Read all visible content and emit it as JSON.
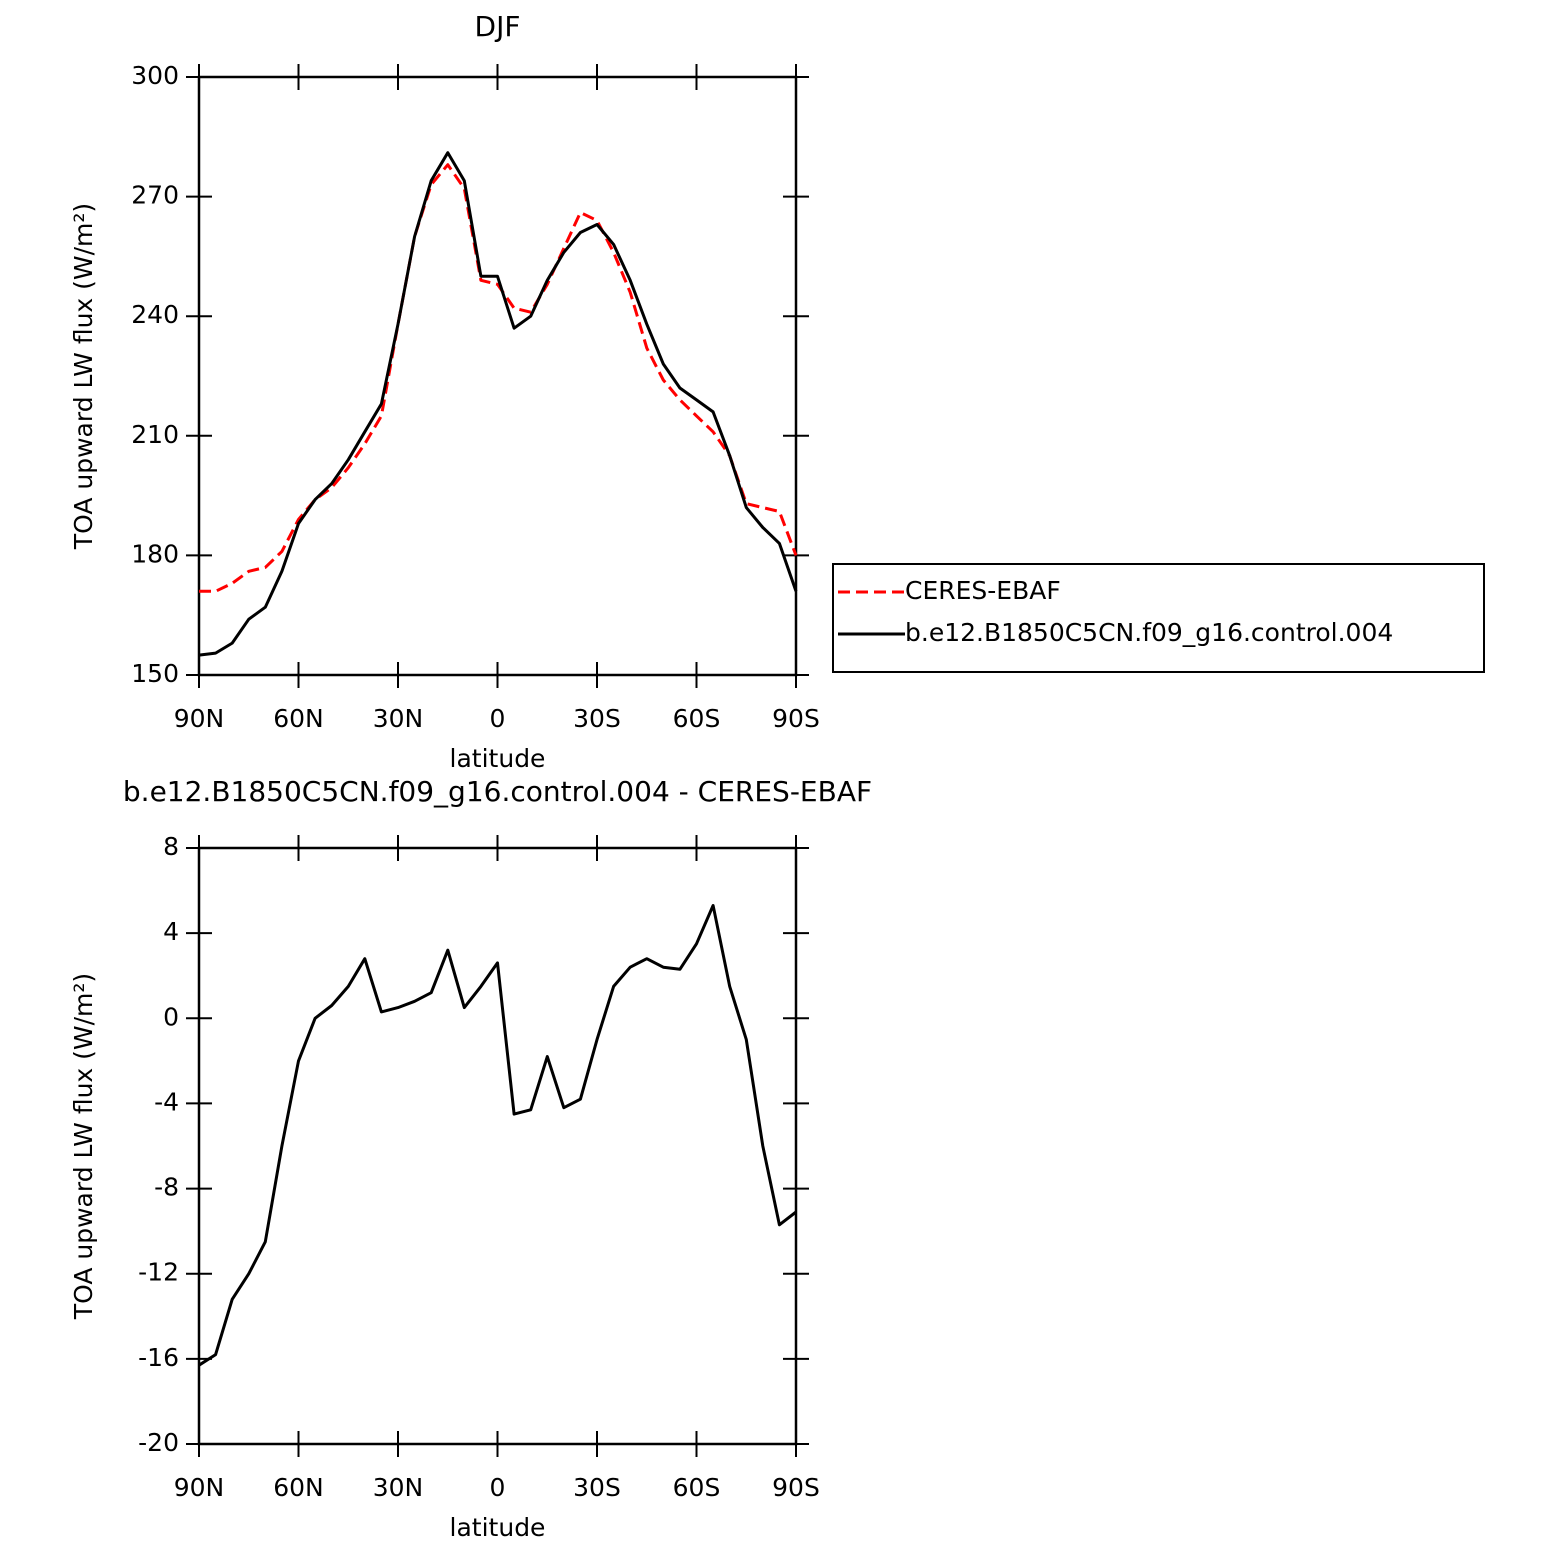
{
  "chart_data": [
    {
      "type": "line",
      "title": "DJF",
      "xlabel": "latitude",
      "ylabel": "TOA upward LW flux (W/m²)",
      "x": [
        90,
        85,
        80,
        75,
        70,
        65,
        60,
        55,
        50,
        45,
        40,
        35,
        30,
        25,
        20,
        15,
        10,
        5,
        0,
        -5,
        -10,
        -15,
        -20,
        -25,
        -30,
        -35,
        -40,
        -45,
        -50,
        -55,
        -60,
        -65,
        -70,
        -75,
        -80,
        -85,
        -90
      ],
      "series": [
        {
          "name": "CERES-EBAF",
          "color": "#ff0000",
          "style": "dashed",
          "values": [
            171,
            171,
            173,
            176,
            177,
            181,
            189,
            194,
            197,
            202,
            208,
            215,
            238,
            260,
            273,
            278,
            272,
            249,
            248,
            242,
            241,
            248,
            257,
            266,
            264,
            256,
            246,
            232,
            224,
            219,
            215,
            211,
            205,
            193,
            192,
            191,
            180
          ]
        },
        {
          "name": "b.e12.B1850C5CN.f09_g16.control.004",
          "color": "#000000",
          "style": "solid",
          "values": [
            155,
            155.5,
            158,
            164,
            167,
            176,
            188,
            194,
            198,
            204,
            211,
            218,
            238,
            260,
            274,
            281,
            274,
            250,
            250,
            237,
            240,
            249,
            256,
            261,
            263,
            258,
            249,
            238,
            228,
            222,
            219,
            216,
            205,
            192,
            187,
            183,
            171
          ]
        }
      ],
      "xlim": [
        90,
        -90
      ],
      "xticks": [
        {
          "value": 90,
          "label": "90N"
        },
        {
          "value": 60,
          "label": "60N"
        },
        {
          "value": 30,
          "label": "30N"
        },
        0,
        {
          "value": -30,
          "label": "30S"
        },
        {
          "value": -60,
          "label": "60S"
        },
        {
          "value": -90,
          "label": "90S"
        }
      ],
      "ylim": [
        150,
        300
      ],
      "yticks": [
        150,
        180,
        210,
        240,
        270,
        300
      ],
      "legend": "right"
    },
    {
      "type": "line",
      "title": "b.e12.B1850C5CN.f09_g16.control.004 - CERES-EBAF",
      "xlabel": "latitude",
      "ylabel": "TOA upward LW flux (W/m²)",
      "x": [
        90,
        85,
        80,
        75,
        70,
        65,
        60,
        55,
        50,
        45,
        40,
        35,
        30,
        25,
        20,
        15,
        10,
        5,
        0,
        -5,
        -10,
        -15,
        -20,
        -25,
        -30,
        -35,
        -40,
        -45,
        -50,
        -55,
        -60,
        -65,
        -70,
        -75,
        -80,
        -85,
        -90
      ],
      "values": [
        -16.3,
        -15.8,
        -13.2,
        -12,
        -10.5,
        -6,
        -2,
        0,
        0.6,
        1.5,
        2.8,
        0.3,
        0.5,
        0.8,
        1.2,
        3.2,
        0.5,
        1.5,
        2.6,
        -4.5,
        -4.3,
        -1.8,
        -4.2,
        -3.8,
        -1,
        1.5,
        2.4,
        2.8,
        2.4,
        2.3,
        3.5,
        5.3,
        1.5,
        -1,
        -6,
        -9.7,
        -9.1
      ],
      "color": "#000000",
      "xlim": [
        90,
        -90
      ],
      "xticks": [
        {
          "value": 90,
          "label": "90N"
        },
        {
          "value": 60,
          "label": "60N"
        },
        {
          "value": 30,
          "label": "30N"
        },
        0,
        {
          "value": -30,
          "label": "30S"
        },
        {
          "value": -60,
          "label": "60S"
        },
        {
          "value": -90,
          "label": "90S"
        }
      ],
      "ylim": [
        -20,
        8
      ],
      "yticks": [
        -20,
        -16,
        -12,
        -8,
        -4,
        0,
        4,
        8
      ]
    }
  ]
}
